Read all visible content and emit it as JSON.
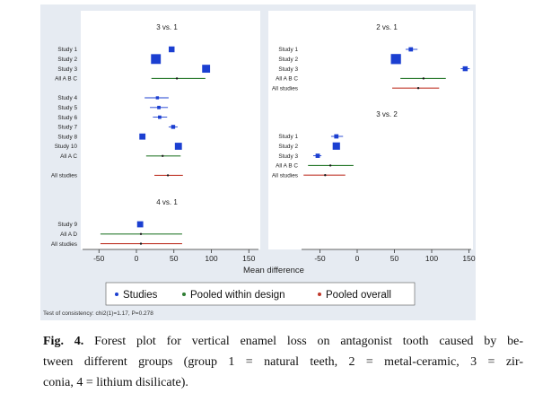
{
  "chart_data": {
    "type": "forest",
    "xlabel": "Mean difference",
    "x_ticks": [
      -50,
      0,
      50,
      100,
      150
    ],
    "colors": {
      "study": "#1b3fd1",
      "within": "#2e7d32",
      "overall": "#c0392b",
      "pooled_point": "#1a1a1a"
    },
    "panels": [
      {
        "comparisons": [
          {
            "title": "3 vs. 1",
            "blocks": [
              [
                {
                  "label": "Study 1",
                  "kind": "study",
                  "estimate": 47,
                  "ci": null,
                  "weight": 1.9
                },
                {
                  "label": "Study 2",
                  "kind": "study",
                  "estimate": 26,
                  "ci": null,
                  "weight": 3.2
                },
                {
                  "label": "Study 3",
                  "kind": "study",
                  "estimate": 93,
                  "ci": null,
                  "weight": 2.6
                },
                {
                  "label": "All A B C",
                  "kind": "within",
                  "estimate": 54,
                  "ci": [
                    20,
                    92
                  ]
                }
              ],
              [
                {
                  "label": "Study 4",
                  "kind": "study",
                  "estimate": 28,
                  "ci": [
                    11,
                    43
                  ],
                  "weight": 1.0
                },
                {
                  "label": "Study 5",
                  "kind": "study",
                  "estimate": 30,
                  "ci": [
                    18,
                    42
                  ],
                  "weight": 1.1
                },
                {
                  "label": "Study 6",
                  "kind": "study",
                  "estimate": 31,
                  "ci": [
                    22,
                    41
                  ],
                  "weight": 1.1
                },
                {
                  "label": "Study 7",
                  "kind": "study",
                  "estimate": 49,
                  "ci": [
                    43,
                    55
                  ],
                  "weight": 1.3
                },
                {
                  "label": "Study 8",
                  "kind": "study",
                  "estimate": 8,
                  "ci": null,
                  "weight": 2.0
                },
                {
                  "label": "Study 10",
                  "kind": "study",
                  "estimate": 56,
                  "ci": null,
                  "weight": 2.3
                },
                {
                  "label": "All A C",
                  "kind": "within",
                  "estimate": 35,
                  "ci": [
                    13,
                    59
                  ]
                }
              ],
              [
                {
                  "label": "All studies",
                  "kind": "overall",
                  "estimate": 42,
                  "ci": [
                    24,
                    62
                  ]
                }
              ]
            ]
          },
          {
            "title": "4 vs. 1",
            "blocks": [
              [
                {
                  "label": "Study 9",
                  "kind": "study",
                  "estimate": 5,
                  "ci": null,
                  "weight": 2.0
                },
                {
                  "label": "All A D",
                  "kind": "within",
                  "estimate": 6,
                  "ci": [
                    -48,
                    61
                  ]
                },
                {
                  "label": "All studies",
                  "kind": "overall",
                  "estimate": 6,
                  "ci": [
                    -48,
                    61
                  ]
                }
              ]
            ]
          }
        ]
      },
      {
        "comparisons": [
          {
            "title": "2 vs. 1",
            "blocks": [
              [
                {
                  "label": "Study 1",
                  "kind": "study",
                  "estimate": 72,
                  "ci": [
                    65,
                    81
                  ],
                  "weight": 1.4
                },
                {
                  "label": "Study 2",
                  "kind": "study",
                  "estimate": 52,
                  "ci": null,
                  "weight": 3.3
                },
                {
                  "label": "Study 3",
                  "kind": "study",
                  "estimate": 145,
                  "ci": [
                    139,
                    151
                  ],
                  "weight": 1.6
                },
                {
                  "label": "All A B C",
                  "kind": "within",
                  "estimate": 89,
                  "ci": [
                    58,
                    119
                  ]
                },
                {
                  "label": "All studies",
                  "kind": "overall",
                  "estimate": 82,
                  "ci": [
                    47,
                    110
                  ]
                }
              ]
            ]
          },
          {
            "title": "3 vs. 2",
            "blocks": [
              [
                {
                  "label": "Study 1",
                  "kind": "study",
                  "estimate": -28,
                  "ci": [
                    -35,
                    -19
                  ],
                  "weight": 1.4
                },
                {
                  "label": "Study 2",
                  "kind": "study",
                  "estimate": -28,
                  "ci": null,
                  "weight": 2.4
                },
                {
                  "label": "Study 3",
                  "kind": "study",
                  "estimate": -53,
                  "ci": [
                    -59,
                    -48
                  ],
                  "weight": 1.4
                },
                {
                  "label": "All A B C",
                  "kind": "within",
                  "estimate": -36,
                  "ci": [
                    -66,
                    -5
                  ]
                },
                {
                  "label": "All studies",
                  "kind": "overall",
                  "estimate": -43,
                  "ci": [
                    -72,
                    -16
                  ]
                }
              ]
            ]
          }
        ]
      }
    ],
    "legend": [
      {
        "label": "Studies",
        "kind": "study"
      },
      {
        "label": "Pooled within design",
        "kind": "within"
      },
      {
        "label": "Pooled overall",
        "kind": "overall"
      }
    ]
  },
  "footnote": "Test of consistency: chi2(1)=1.17, P=0.278",
  "caption": {
    "label": "Fig. 4.",
    "lines": [
      "Forest plot for vertical enamel loss on antagonist tooth caused by be-",
      "tween different groups (group 1 = natural teeth, 2 = metal-ceramic, 3 = zir-",
      "conia, 4 = lithium disilicate)."
    ]
  }
}
